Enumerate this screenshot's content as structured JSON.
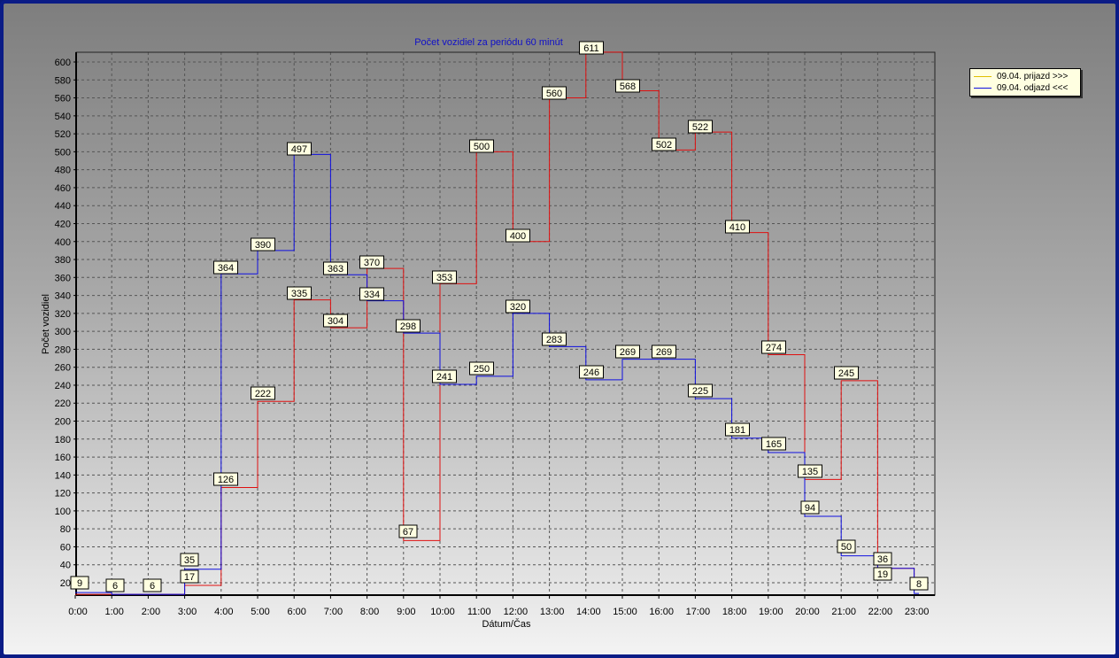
{
  "chart_data": {
    "type": "line",
    "step": true,
    "title": "Počet vozidiel za periódu 60 minút",
    "xlabel": "Dátum/Čas",
    "ylabel": "Počet vozidiel",
    "categories": [
      "0:00",
      "1:00",
      "2:00",
      "3:00",
      "4:00",
      "5:00",
      "6:00",
      "7:00",
      "8:00",
      "9:00",
      "10:00",
      "11:00",
      "12:00",
      "13:00",
      "14:00",
      "15:00",
      "16:00",
      "17:00",
      "18:00",
      "19:00",
      "20:00",
      "21:00",
      "22:00",
      "23:00"
    ],
    "yticks": [
      20,
      40,
      60,
      80,
      100,
      120,
      140,
      160,
      180,
      200,
      220,
      240,
      260,
      280,
      300,
      320,
      340,
      360,
      380,
      400,
      420,
      440,
      460,
      480,
      500,
      520,
      540,
      560,
      580,
      600
    ],
    "ylim": [
      7,
      626
    ],
    "grid": true,
    "legend_position": "top-right",
    "series": [
      {
        "name": "09.04.  prijazd >>>",
        "color": "#e01010",
        "legend_color": "#e0c000",
        "values": [
          5,
          4,
          6,
          17,
          126,
          222,
          335,
          304,
          370,
          67,
          353,
          500,
          400,
          560,
          611,
          568,
          502,
          522,
          410,
          274,
          135,
          245,
          36,
          19
        ]
      },
      {
        "name": "09.04.  odjazd <<<",
        "color": "#1010e0",
        "legend_color": "#1010e0",
        "values": [
          9,
          6,
          6,
          35,
          364,
          390,
          497,
          363,
          334,
          298,
          241,
          250,
          320,
          283,
          246,
          269,
          269,
          225,
          181,
          165,
          94,
          50,
          36,
          8
        ]
      }
    ],
    "data_labels": [
      "9",
      "6",
      "6",
      "35",
      "17",
      "364",
      "126",
      "390",
      "222",
      "497",
      "335",
      "363",
      "304",
      "370",
      "334",
      "298",
      "67",
      "353",
      "241",
      "500",
      "250",
      "400",
      "320",
      "560",
      "283",
      "611",
      "246",
      "568",
      "269",
      "502",
      "269",
      "522",
      "225",
      "410",
      "181",
      "274",
      "165",
      "135",
      "245",
      "94",
      "50",
      "36",
      "19",
      "8"
    ]
  }
}
